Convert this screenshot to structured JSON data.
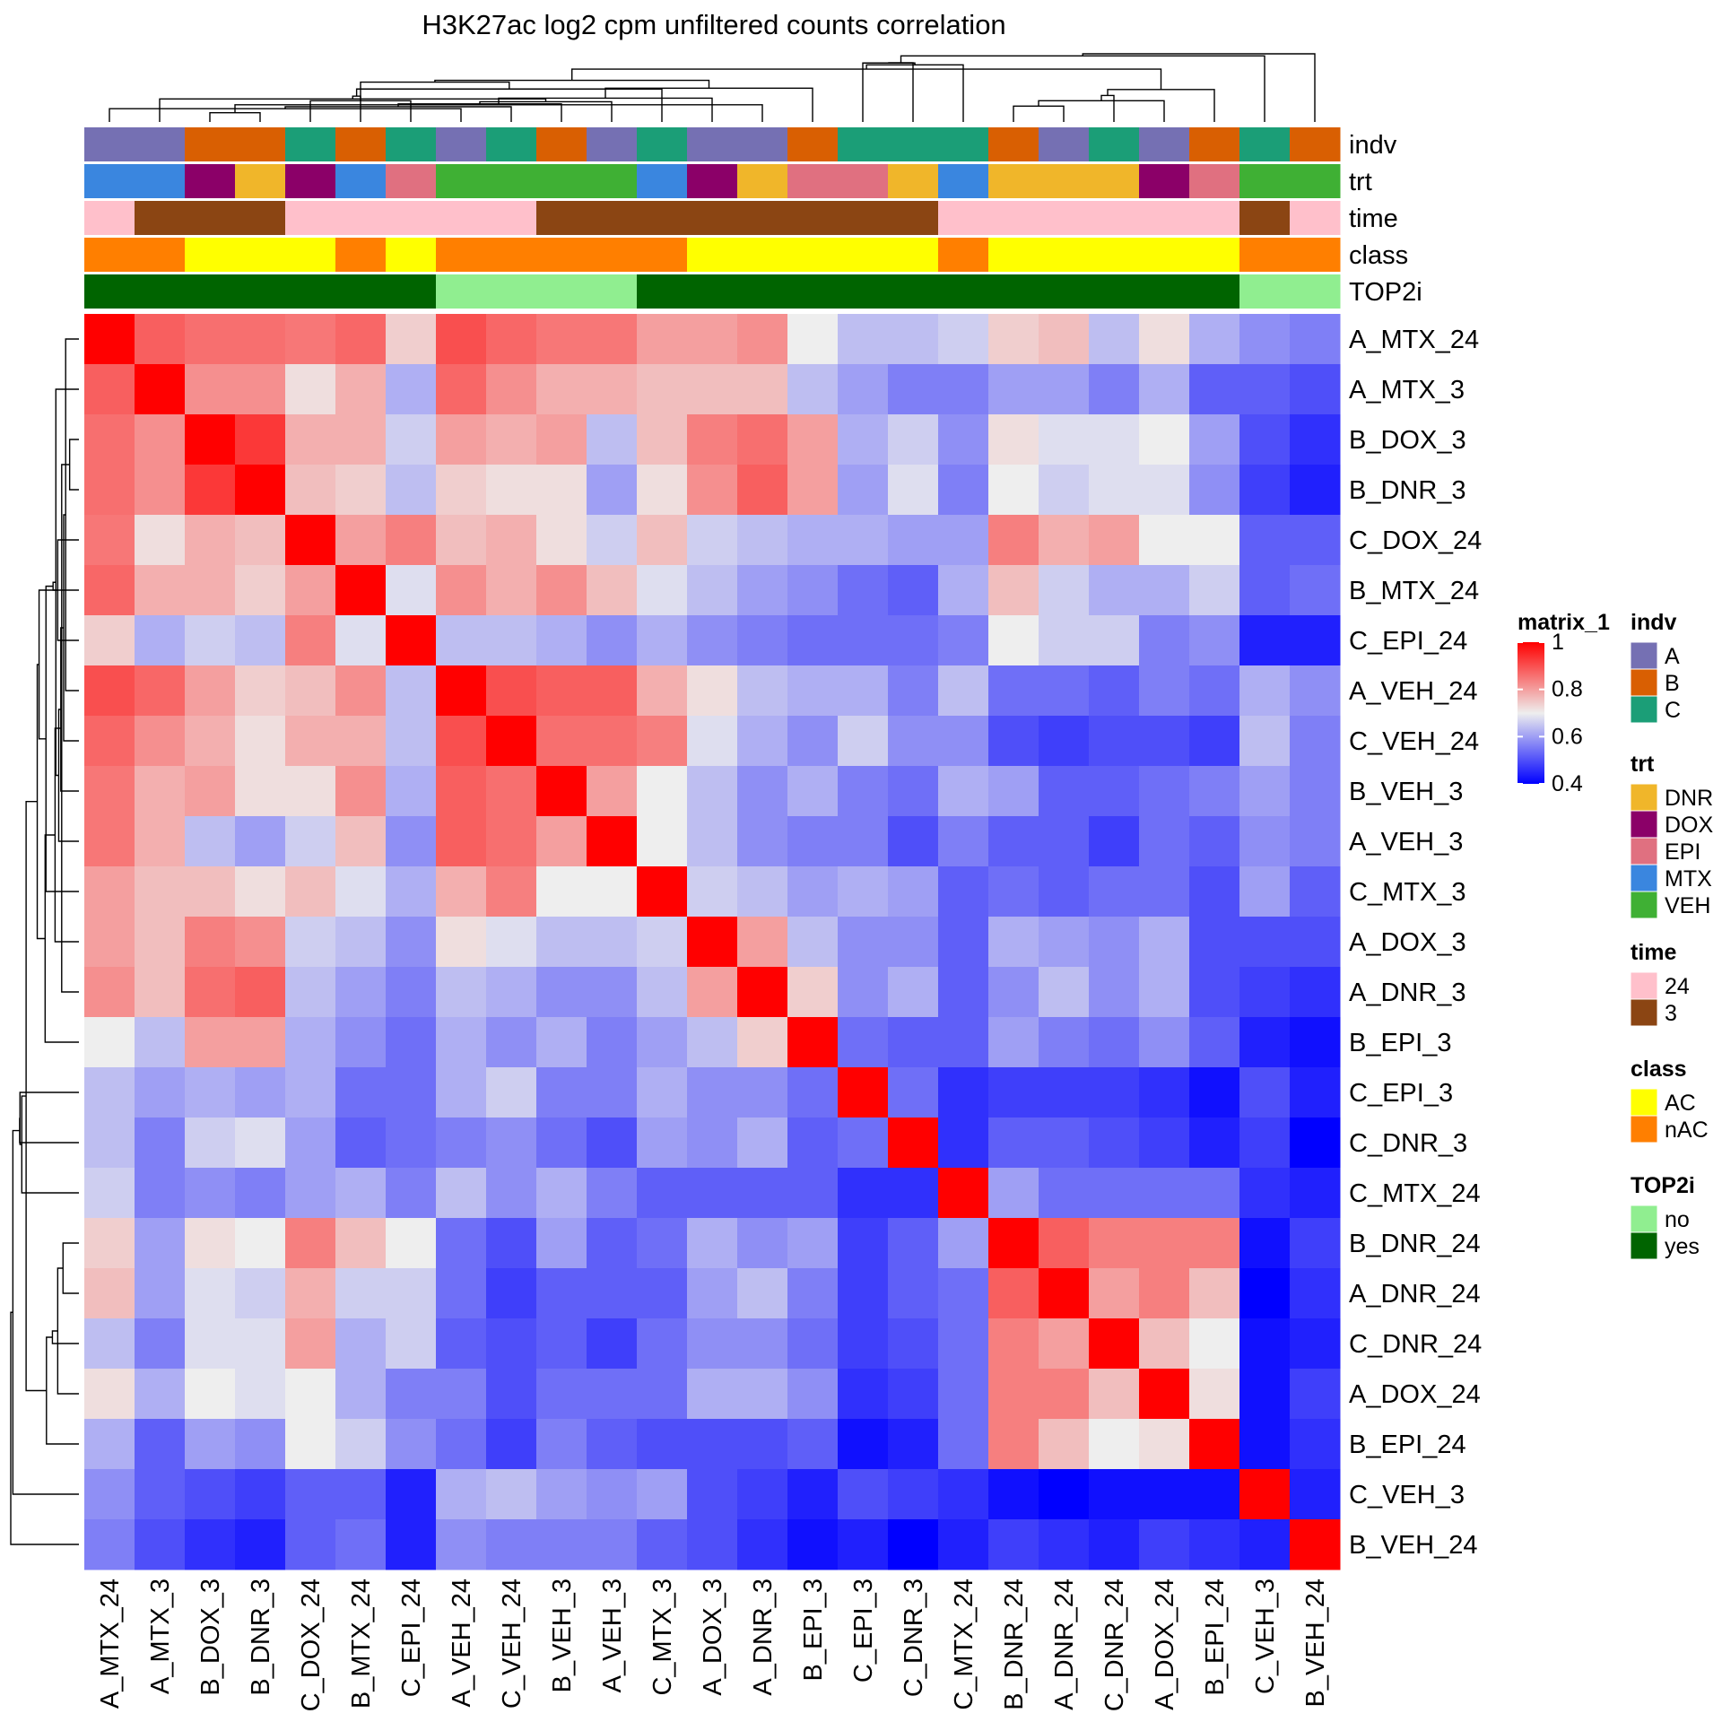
{
  "chart_data": {
    "type": "heatmap",
    "title": "H3K27ac log2 cpm unfiltered counts correlation",
    "samples": [
      "A_MTX_24",
      "A_MTX_3",
      "B_DOX_3",
      "B_DNR_3",
      "C_DOX_24",
      "B_MTX_24",
      "C_EPI_24",
      "A_VEH_24",
      "C_VEH_24",
      "B_VEH_3",
      "A_VEH_3",
      "C_MTX_3",
      "A_DOX_3",
      "A_DNR_3",
      "B_EPI_3",
      "C_EPI_3",
      "C_DNR_3",
      "C_MTX_24",
      "B_DNR_24",
      "A_DNR_24",
      "C_DNR_24",
      "A_DOX_24",
      "B_EPI_24",
      "C_VEH_3",
      "B_VEH_24"
    ],
    "values": [
      [
        1.0,
        0.88,
        0.86,
        0.86,
        0.85,
        0.87,
        0.74,
        0.9,
        0.87,
        0.85,
        0.85,
        0.8,
        0.8,
        0.82,
        0.7,
        0.64,
        0.64,
        0.66,
        0.74,
        0.76,
        0.64,
        0.72,
        0.62,
        0.58,
        0.56
      ],
      [
        0.88,
        1.0,
        0.82,
        0.82,
        0.72,
        0.78,
        0.62,
        0.87,
        0.82,
        0.78,
        0.78,
        0.76,
        0.76,
        0.76,
        0.64,
        0.6,
        0.56,
        0.56,
        0.6,
        0.6,
        0.56,
        0.62,
        0.52,
        0.52,
        0.5
      ],
      [
        0.86,
        0.82,
        1.0,
        0.93,
        0.78,
        0.78,
        0.66,
        0.8,
        0.78,
        0.8,
        0.64,
        0.76,
        0.84,
        0.86,
        0.8,
        0.62,
        0.66,
        0.58,
        0.72,
        0.68,
        0.68,
        0.7,
        0.6,
        0.5,
        0.46
      ],
      [
        0.86,
        0.82,
        0.93,
        1.0,
        0.76,
        0.74,
        0.64,
        0.74,
        0.72,
        0.72,
        0.6,
        0.72,
        0.82,
        0.88,
        0.8,
        0.6,
        0.68,
        0.56,
        0.7,
        0.66,
        0.68,
        0.68,
        0.58,
        0.48,
        0.44
      ],
      [
        0.85,
        0.72,
        0.78,
        0.76,
        1.0,
        0.8,
        0.84,
        0.76,
        0.78,
        0.72,
        0.66,
        0.76,
        0.66,
        0.64,
        0.62,
        0.62,
        0.6,
        0.6,
        0.84,
        0.78,
        0.8,
        0.7,
        0.7,
        0.52,
        0.52
      ],
      [
        0.87,
        0.78,
        0.78,
        0.74,
        0.8,
        1.0,
        0.68,
        0.82,
        0.78,
        0.82,
        0.76,
        0.68,
        0.64,
        0.6,
        0.58,
        0.54,
        0.52,
        0.62,
        0.76,
        0.66,
        0.62,
        0.62,
        0.66,
        0.52,
        0.54
      ],
      [
        0.74,
        0.62,
        0.66,
        0.64,
        0.84,
        0.68,
        1.0,
        0.64,
        0.64,
        0.62,
        0.58,
        0.62,
        0.58,
        0.56,
        0.54,
        0.54,
        0.54,
        0.56,
        0.7,
        0.66,
        0.66,
        0.56,
        0.58,
        0.44,
        0.44
      ],
      [
        0.9,
        0.87,
        0.8,
        0.74,
        0.76,
        0.82,
        0.64,
        1.0,
        0.9,
        0.88,
        0.88,
        0.78,
        0.72,
        0.64,
        0.62,
        0.62,
        0.56,
        0.64,
        0.54,
        0.54,
        0.52,
        0.56,
        0.54,
        0.62,
        0.58
      ],
      [
        0.87,
        0.82,
        0.78,
        0.72,
        0.78,
        0.78,
        0.64,
        0.9,
        1.0,
        0.86,
        0.86,
        0.84,
        0.68,
        0.62,
        0.58,
        0.66,
        0.58,
        0.58,
        0.5,
        0.48,
        0.5,
        0.5,
        0.48,
        0.64,
        0.56
      ],
      [
        0.85,
        0.78,
        0.8,
        0.72,
        0.72,
        0.82,
        0.62,
        0.88,
        0.86,
        1.0,
        0.8,
        0.7,
        0.64,
        0.58,
        0.62,
        0.56,
        0.54,
        0.62,
        0.6,
        0.52,
        0.52,
        0.54,
        0.56,
        0.6,
        0.56
      ],
      [
        0.85,
        0.78,
        0.64,
        0.6,
        0.66,
        0.76,
        0.58,
        0.88,
        0.86,
        0.8,
        1.0,
        0.7,
        0.64,
        0.58,
        0.56,
        0.56,
        0.5,
        0.56,
        0.52,
        0.52,
        0.48,
        0.54,
        0.52,
        0.58,
        0.56
      ],
      [
        0.8,
        0.76,
        0.76,
        0.72,
        0.76,
        0.68,
        0.62,
        0.78,
        0.84,
        0.7,
        0.7,
        1.0,
        0.66,
        0.64,
        0.6,
        0.62,
        0.6,
        0.52,
        0.54,
        0.52,
        0.54,
        0.54,
        0.5,
        0.6,
        0.52
      ],
      [
        0.8,
        0.76,
        0.84,
        0.82,
        0.66,
        0.64,
        0.58,
        0.72,
        0.68,
        0.64,
        0.64,
        0.66,
        1.0,
        0.8,
        0.64,
        0.58,
        0.58,
        0.52,
        0.62,
        0.6,
        0.58,
        0.62,
        0.5,
        0.5,
        0.5
      ],
      [
        0.82,
        0.76,
        0.86,
        0.88,
        0.64,
        0.6,
        0.56,
        0.64,
        0.62,
        0.58,
        0.58,
        0.64,
        0.8,
        1.0,
        0.74,
        0.58,
        0.62,
        0.52,
        0.58,
        0.64,
        0.58,
        0.62,
        0.5,
        0.48,
        0.46
      ],
      [
        0.7,
        0.64,
        0.8,
        0.8,
        0.62,
        0.58,
        0.54,
        0.62,
        0.58,
        0.62,
        0.56,
        0.6,
        0.64,
        0.74,
        1.0,
        0.54,
        0.52,
        0.52,
        0.6,
        0.56,
        0.54,
        0.58,
        0.52,
        0.44,
        0.42
      ],
      [
        0.64,
        0.6,
        0.62,
        0.6,
        0.62,
        0.54,
        0.54,
        0.62,
        0.66,
        0.56,
        0.56,
        0.62,
        0.58,
        0.58,
        0.54,
        1.0,
        0.54,
        0.46,
        0.48,
        0.48,
        0.48,
        0.46,
        0.42,
        0.5,
        0.44
      ],
      [
        0.64,
        0.56,
        0.66,
        0.68,
        0.6,
        0.52,
        0.54,
        0.56,
        0.58,
        0.54,
        0.5,
        0.6,
        0.58,
        0.62,
        0.52,
        0.54,
        1.0,
        0.46,
        0.52,
        0.52,
        0.5,
        0.48,
        0.44,
        0.48,
        0.4
      ],
      [
        0.66,
        0.56,
        0.58,
        0.56,
        0.6,
        0.62,
        0.56,
        0.64,
        0.58,
        0.62,
        0.56,
        0.52,
        0.52,
        0.52,
        0.52,
        0.46,
        0.46,
        1.0,
        0.6,
        0.54,
        0.54,
        0.54,
        0.54,
        0.46,
        0.44
      ],
      [
        0.74,
        0.6,
        0.72,
        0.7,
        0.84,
        0.76,
        0.7,
        0.54,
        0.5,
        0.6,
        0.52,
        0.54,
        0.62,
        0.58,
        0.6,
        0.48,
        0.52,
        0.6,
        1.0,
        0.88,
        0.84,
        0.84,
        0.84,
        0.42,
        0.48
      ],
      [
        0.76,
        0.6,
        0.68,
        0.66,
        0.78,
        0.66,
        0.66,
        0.54,
        0.48,
        0.52,
        0.52,
        0.52,
        0.6,
        0.64,
        0.56,
        0.48,
        0.52,
        0.54,
        0.88,
        1.0,
        0.8,
        0.84,
        0.76,
        0.4,
        0.46
      ],
      [
        0.64,
        0.56,
        0.68,
        0.68,
        0.8,
        0.62,
        0.66,
        0.52,
        0.5,
        0.52,
        0.48,
        0.54,
        0.58,
        0.58,
        0.54,
        0.48,
        0.5,
        0.54,
        0.84,
        0.8,
        1.0,
        0.76,
        0.7,
        0.42,
        0.44
      ],
      [
        0.72,
        0.62,
        0.7,
        0.68,
        0.7,
        0.62,
        0.56,
        0.56,
        0.5,
        0.54,
        0.54,
        0.54,
        0.62,
        0.62,
        0.58,
        0.46,
        0.48,
        0.54,
        0.84,
        0.84,
        0.76,
        1.0,
        0.72,
        0.42,
        0.48
      ],
      [
        0.62,
        0.52,
        0.6,
        0.58,
        0.7,
        0.66,
        0.58,
        0.54,
        0.48,
        0.56,
        0.52,
        0.5,
        0.5,
        0.5,
        0.52,
        0.42,
        0.44,
        0.54,
        0.84,
        0.76,
        0.7,
        0.72,
        1.0,
        0.42,
        0.46
      ],
      [
        0.58,
        0.52,
        0.5,
        0.48,
        0.52,
        0.52,
        0.44,
        0.62,
        0.64,
        0.6,
        0.58,
        0.6,
        0.5,
        0.48,
        0.44,
        0.5,
        0.48,
        0.46,
        0.42,
        0.4,
        0.42,
        0.42,
        0.42,
        1.0,
        0.44
      ],
      [
        0.56,
        0.5,
        0.46,
        0.44,
        0.52,
        0.54,
        0.44,
        0.58,
        0.56,
        0.56,
        0.56,
        0.52,
        0.5,
        0.46,
        0.42,
        0.44,
        0.4,
        0.44,
        0.48,
        0.46,
        0.44,
        0.48,
        0.46,
        0.44,
        1.0
      ]
    ],
    "annotations": {
      "indv": [
        "A",
        "A",
        "B",
        "B",
        "C",
        "B",
        "C",
        "A",
        "C",
        "B",
        "A",
        "C",
        "A",
        "A",
        "B",
        "C",
        "C",
        "C",
        "B",
        "A",
        "C",
        "A",
        "B",
        "C",
        "B"
      ],
      "trt": [
        "MTX",
        "MTX",
        "DOX",
        "DNR",
        "DOX",
        "MTX",
        "EPI",
        "VEH",
        "VEH",
        "VEH",
        "VEH",
        "MTX",
        "DOX",
        "DNR",
        "EPI",
        "EPI",
        "DNR",
        "MTX",
        "DNR",
        "DNR",
        "DNR",
        "DOX",
        "EPI",
        "VEH",
        "VEH"
      ],
      "time": [
        "24",
        "3",
        "3",
        "3",
        "24",
        "24",
        "24",
        "24",
        "24",
        "3",
        "3",
        "3",
        "3",
        "3",
        "3",
        "3",
        "3",
        "24",
        "24",
        "24",
        "24",
        "24",
        "24",
        "3",
        "24"
      ],
      "class": [
        "nAC",
        "nAC",
        "AC",
        "AC",
        "AC",
        "nAC",
        "AC",
        "nAC",
        "nAC",
        "nAC",
        "nAC",
        "nAC",
        "AC",
        "AC",
        "AC",
        "AC",
        "AC",
        "nAC",
        "AC",
        "AC",
        "AC",
        "AC",
        "AC",
        "nAC",
        "nAC"
      ],
      "TOP2i": [
        "yes",
        "yes",
        "yes",
        "yes",
        "yes",
        "yes",
        "yes",
        "no",
        "no",
        "no",
        "no",
        "yes",
        "yes",
        "yes",
        "yes",
        "yes",
        "yes",
        "yes",
        "yes",
        "yes",
        "yes",
        "yes",
        "yes",
        "no",
        "no"
      ]
    },
    "annotation_tracks": [
      "indv",
      "trt",
      "time",
      "class",
      "TOP2i"
    ],
    "color_scale": {
      "name": "matrix_1",
      "stops": [
        {
          "value": 0.4,
          "color": "#0000ff"
        },
        {
          "value": 0.7,
          "color": "#eeeeee"
        },
        {
          "value": 1.0,
          "color": "#ff0000"
        }
      ],
      "ticks": [
        "1",
        "0.8",
        "0.6",
        "0.4"
      ]
    },
    "legends": [
      {
        "title": "indv",
        "items": [
          {
            "label": "A",
            "color": "#7570b3"
          },
          {
            "label": "B",
            "color": "#d95f02"
          },
          {
            "label": "C",
            "color": "#1b9e77"
          }
        ]
      },
      {
        "title": "trt",
        "items": [
          {
            "label": "DNR",
            "color": "#f0b62a"
          },
          {
            "label": "DOX",
            "color": "#8b0068"
          },
          {
            "label": "EPI",
            "color": "#e07080"
          },
          {
            "label": "MTX",
            "color": "#3a86df"
          },
          {
            "label": "VEH",
            "color": "#3fb034"
          }
        ]
      },
      {
        "title": "time",
        "items": [
          {
            "label": "24",
            "color": "#ffc0cb"
          },
          {
            "label": "3",
            "color": "#8b4513"
          }
        ]
      },
      {
        "title": "class",
        "items": [
          {
            "label": "AC",
            "color": "#ffff00"
          },
          {
            "label": "nAC",
            "color": "#ff7f00"
          }
        ]
      },
      {
        "title": "TOP2i",
        "items": [
          {
            "label": "no",
            "color": "#90ee90"
          },
          {
            "label": "yes",
            "color": "#006400"
          }
        ]
      }
    ],
    "dendrogram": true
  }
}
